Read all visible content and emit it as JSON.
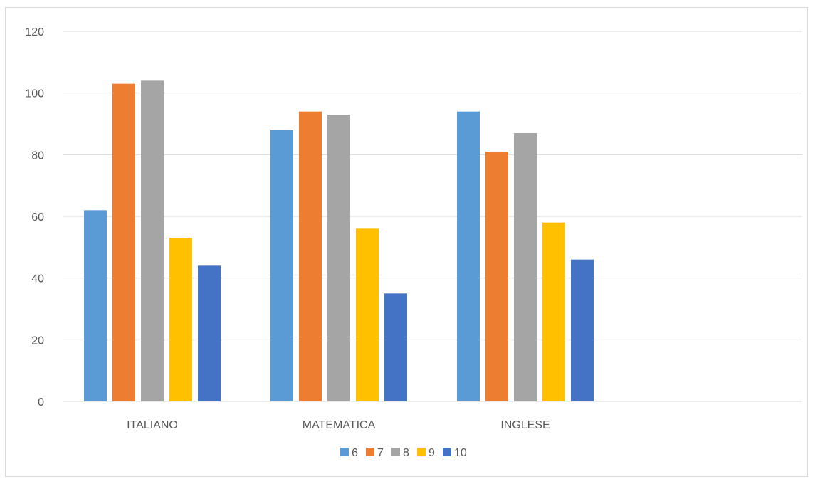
{
  "chart_data": {
    "type": "bar",
    "categories": [
      "ITALIANO",
      "MATEMATICA",
      "INGLESE"
    ],
    "series": [
      {
        "name": "6",
        "color": "#5b9bd5",
        "values": [
          62,
          88,
          94
        ]
      },
      {
        "name": "7",
        "color": "#ed7d31",
        "values": [
          103,
          94,
          81
        ]
      },
      {
        "name": "8",
        "color": "#a5a5a5",
        "values": [
          104,
          93,
          87
        ]
      },
      {
        "name": "9",
        "color": "#ffc000",
        "values": [
          53,
          56,
          58
        ]
      },
      {
        "name": "10",
        "color": "#4472c4",
        "values": [
          44,
          35,
          46
        ]
      }
    ],
    "yticks": [
      "0",
      "20",
      "40",
      "60",
      "80",
      "100",
      "120"
    ],
    "ylim": [
      0,
      120
    ],
    "grid": true,
    "legend": "bottom",
    "title": "",
    "xlabel": "",
    "ylabel": ""
  }
}
